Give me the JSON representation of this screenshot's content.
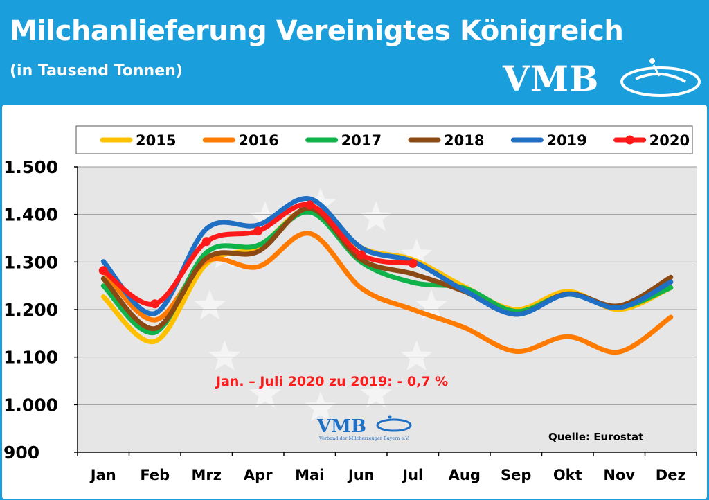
{
  "header": {
    "title": "Milchanlieferung Vereinigtes Königreich",
    "subtitle": "(in Tausend Tonnen)",
    "brand": "VMB"
  },
  "colors": {
    "background": "#1a9fdc",
    "plot_area": "#e6e6e6",
    "accent_red": "#ff1a1a"
  },
  "chart_data": {
    "type": "line",
    "title": "Milchanlieferung Vereinigtes Königreich",
    "ylabel": "",
    "xlabel": "",
    "categories": [
      "Jan",
      "Feb",
      "Mrz",
      "Apr",
      "Mai",
      "Jun",
      "Jul",
      "Aug",
      "Sep",
      "Okt",
      "Nov",
      "Dez"
    ],
    "ylim": [
      900,
      1500
    ],
    "yticks": [
      "1.500",
      "1.400",
      "1.300",
      "1.200",
      "1.100",
      "1.000",
      "900"
    ],
    "legend_position": "top",
    "series": [
      {
        "name": "2015",
        "color": "#ffc000",
        "values": [
          1227,
          1133,
          1296,
          1332,
          1412,
          1330,
          1305,
          1248,
          1200,
          1238,
          1200,
          1246
        ]
      },
      {
        "name": "2016",
        "color": "#ff7a00",
        "values": [
          1281,
          1178,
          1302,
          1290,
          1360,
          1245,
          1200,
          1162,
          1112,
          1143,
          1111,
          1184
        ]
      },
      {
        "name": "2017",
        "color": "#10b24a",
        "values": [
          1250,
          1152,
          1320,
          1335,
          1405,
          1300,
          1257,
          1245,
          1196,
          1232,
          1205,
          1246
        ]
      },
      {
        "name": "2018",
        "color": "#8b4a14",
        "values": [
          1265,
          1160,
          1308,
          1322,
          1413,
          1305,
          1275,
          1238,
          1190,
          1233,
          1208,
          1268
        ]
      },
      {
        "name": "2019",
        "color": "#1f6fc4",
        "values": [
          1301,
          1192,
          1370,
          1378,
          1433,
          1330,
          1301,
          1240,
          1190,
          1232,
          1204,
          1258
        ]
      },
      {
        "name": "2020",
        "color": "#ff1a1a",
        "marker": true,
        "values": [
          1282,
          1212,
          1343,
          1365,
          1420,
          1315,
          1297,
          null,
          null,
          null,
          null,
          null
        ]
      }
    ],
    "annotations": [
      {
        "text": "Jan. – Juli 2020 zu 2019: - 0,7 %"
      },
      {
        "text": "Quelle: Eurostat"
      }
    ],
    "inner_logo": {
      "brand": "VMB",
      "tagline": "Verband der Milcherzeuger Bayern e.V."
    }
  }
}
